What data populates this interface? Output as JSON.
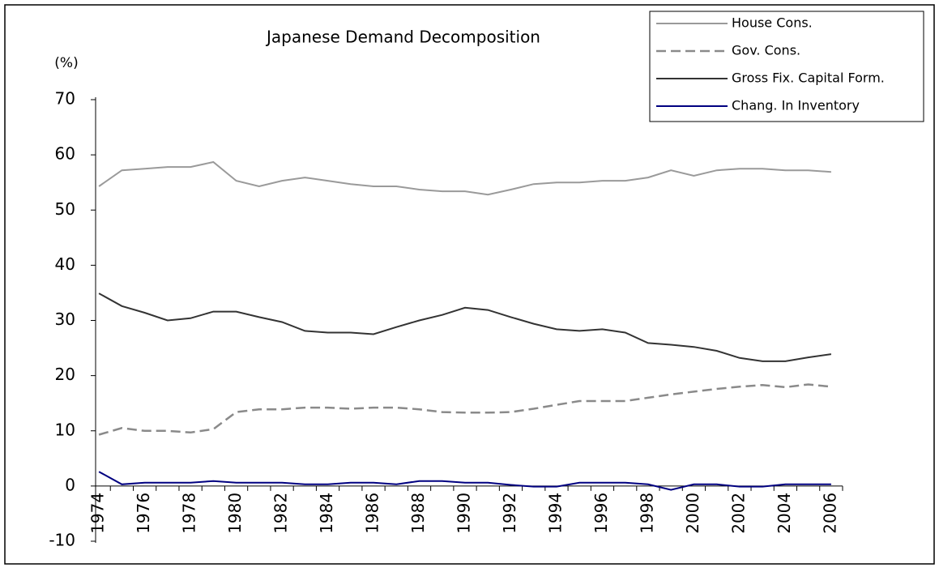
{
  "chart_data": {
    "type": "line",
    "title": "Japanese Demand Decomposition",
    "y_label": "(%)",
    "categories": [
      "1974",
      null,
      "1976",
      null,
      "1978",
      null,
      "1980",
      null,
      "1982",
      null,
      "1984",
      null,
      "1986",
      null,
      "1988",
      null,
      "1990",
      null,
      "1992",
      null,
      "1994",
      null,
      "1996",
      null,
      "1998",
      null,
      "2000",
      null,
      "2002",
      null,
      "2004",
      null,
      "2006"
    ],
    "series": [
      {
        "name": "House Cons.",
        "color": "#9a9a9a",
        "dash": false,
        "values": [
          54.3,
          57.2,
          57.5,
          57.8,
          57.8,
          58.7,
          55.3,
          54.3,
          55.3,
          55.9,
          55.3,
          54.7,
          54.3,
          54.3,
          53.7,
          53.4,
          53.4,
          52.8,
          53.7,
          54.7,
          55.0,
          55.0,
          55.3,
          55.3,
          55.9,
          57.2,
          56.2,
          57.2,
          57.5,
          57.5,
          57.2,
          57.2,
          56.9
        ]
      },
      {
        "name": "Gov. Cons.",
        "color": "#8a8a8a",
        "dash": true,
        "values": [
          9.3,
          10.5,
          10.0,
          10.0,
          9.7,
          10.3,
          13.4,
          13.9,
          13.9,
          14.2,
          14.2,
          14.0,
          14.2,
          14.2,
          13.9,
          13.4,
          13.3,
          13.3,
          13.4,
          14.0,
          14.7,
          15.4,
          15.4,
          15.4,
          16.0,
          16.6,
          17.1,
          17.6,
          18.0,
          18.3,
          17.9,
          18.4,
          18.0
        ]
      },
      {
        "name": "Gross Fix. Capital Form.",
        "color": "#333333",
        "dash": false,
        "values": [
          34.9,
          32.6,
          31.4,
          30.0,
          30.4,
          31.6,
          31.6,
          30.6,
          29.7,
          28.1,
          27.8,
          27.8,
          27.5,
          28.8,
          30.0,
          31.0,
          32.3,
          31.9,
          30.6,
          29.4,
          28.4,
          28.1,
          28.4,
          27.8,
          25.9,
          25.6,
          25.2,
          24.5,
          23.2,
          22.6,
          22.6,
          23.3,
          23.9
        ]
      },
      {
        "name": "Chang. In Inventory",
        "color": "#000080",
        "dash": false,
        "values": [
          2.6,
          0.3,
          0.6,
          0.6,
          0.6,
          0.9,
          0.6,
          0.6,
          0.6,
          0.3,
          0.3,
          0.6,
          0.6,
          0.3,
          0.9,
          0.9,
          0.6,
          0.6,
          0.2,
          -0.1,
          -0.1,
          0.6,
          0.6,
          0.6,
          0.3,
          -0.7,
          0.3,
          0.3,
          -0.1,
          -0.1,
          0.3,
          0.3,
          0.3
        ]
      }
    ],
    "ylim": [
      -10,
      70
    ],
    "yticks": [
      -10,
      0,
      10,
      20,
      30,
      40,
      50,
      60,
      70
    ],
    "grid": false,
    "legend": "top-right"
  }
}
